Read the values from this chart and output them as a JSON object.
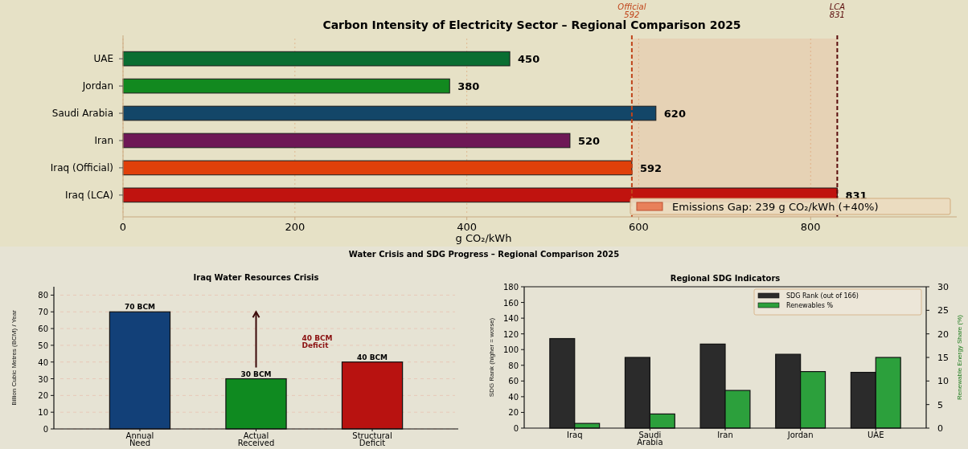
{
  "chart_data": [
    {
      "type": "bar",
      "orientation": "horizontal",
      "title": "Carbon Intensity of Electricity Sector – Regional Comparison 2025",
      "xlabel": "g CO₂/kWh",
      "categories": [
        "UAE",
        "Jordan",
        "Saudi Arabia",
        "Iran",
        "Iraq (Official)",
        "Iraq (LCA)"
      ],
      "values": [
        450,
        380,
        620,
        520,
        592,
        831
      ],
      "colors": [
        "#0a6e32",
        "#12891f",
        "#134668",
        "#6e1856",
        "#e0400a",
        "#c0130f"
      ],
      "data_labels": true,
      "xlim": [
        0,
        970
      ],
      "xticks": [
        0,
        200,
        400,
        600,
        800
      ],
      "grid": "x",
      "ref_lines": [
        {
          "axis": "x",
          "value": 592,
          "label": "Official 592",
          "color": "#c0441a",
          "line_style": "dashed"
        },
        {
          "axis": "x",
          "value": 831,
          "label": "LCA 831",
          "color": "#5a0a0a",
          "line_style": "dashed"
        }
      ],
      "bands": [
        {
          "axis": "x",
          "from": 592,
          "to": 831,
          "label": "Emissions Gap: 239 g CO₂/kWh (+40%)",
          "color": "#e8805a"
        }
      ]
    },
    {
      "type": "bar",
      "title": "Iraq Water Resources Crisis",
      "ylabel": "Billion Cubic Metres (BCM) / Year",
      "categories": [
        "Annual Need",
        "Actual Received",
        "Structural Deficit"
      ],
      "values": [
        70,
        30,
        40
      ],
      "colors": [
        "#124078",
        "#0f8a20",
        "#b81210"
      ],
      "value_labels": [
        "70 BCM",
        "30 BCM",
        "40 BCM"
      ],
      "ylim": [
        0,
        85
      ],
      "yticks": [
        0,
        10,
        20,
        30,
        40,
        50,
        60,
        70,
        80
      ],
      "grid": "y",
      "annotations": [
        "Water Crisis and SDG Progress – Regional Comparison 2025",
        "40 BCM Deficit"
      ]
    },
    {
      "type": "bar",
      "title": "Regional SDG Indicators",
      "ylabel": "SDG Rank (higher = worse)",
      "y2label": "Renewable Energy Share (%)",
      "categories": [
        "Iraq",
        "Saudi Arabia",
        "Iran",
        "Jordan",
        "UAE"
      ],
      "series": [
        {
          "name": "SDG Rank (out of 166)",
          "color": "#2b2b2b",
          "values": [
            114,
            90,
            107,
            94,
            71
          ]
        },
        {
          "name": "Renewables %",
          "color": "#2ca03c",
          "values": [
            1,
            3,
            8,
            12,
            15
          ],
          "axis": "y2"
        }
      ],
      "ylim": [
        0,
        180
      ],
      "yticks": [
        0,
        20,
        40,
        60,
        80,
        100,
        120,
        140,
        160,
        180
      ],
      "y2lim": [
        0,
        30
      ],
      "y2ticks": [
        0,
        5,
        10,
        15,
        20,
        25,
        30
      ],
      "legend": "top right"
    }
  ]
}
